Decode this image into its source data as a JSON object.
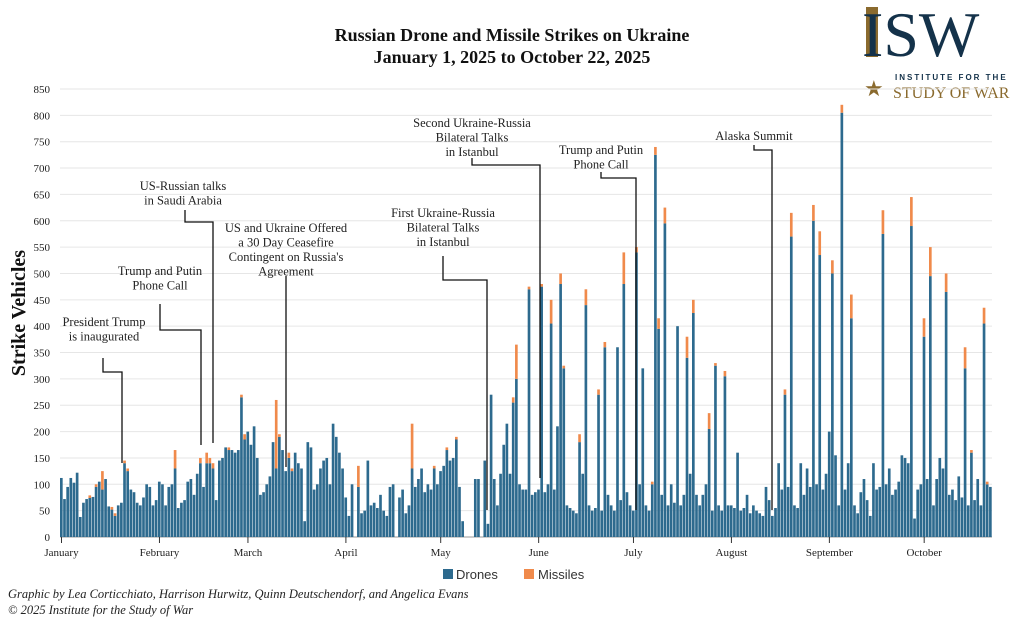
{
  "chart_data": {
    "type": "bar",
    "stacked": true,
    "title": "Russian Drone and Missile Strikes on Ukraine",
    "subtitle": "January 1, 2025 to October 22, 2025",
    "ylabel": "Strike Vehicles",
    "xlabel": "",
    "x_range": [
      "2025-01-01",
      "2025-10-22"
    ],
    "ylim": [
      0,
      850
    ],
    "yticks": [
      0,
      50,
      100,
      150,
      200,
      250,
      300,
      350,
      400,
      450,
      500,
      550,
      600,
      650,
      700,
      750,
      800,
      850
    ],
    "xticks": [
      {
        "label": "January",
        "day": 0
      },
      {
        "label": "February",
        "day": 31
      },
      {
        "label": "March",
        "day": 59
      },
      {
        "label": "April",
        "day": 90
      },
      {
        "label": "May",
        "day": 120
      },
      {
        "label": "June",
        "day": 151
      },
      {
        "label": "July",
        "day": 181
      },
      {
        "label": "August",
        "day": 212
      },
      {
        "label": "September",
        "day": 243
      },
      {
        "label": "October",
        "day": 273
      }
    ],
    "grid": true,
    "legend": "bottom",
    "colors": {
      "Drones": "#2d6a8e",
      "Missiles": "#f08a4b"
    },
    "series": [
      {
        "name": "Drones",
        "values": [
          112,
          72,
          95,
          112,
          103,
          122,
          38,
          65,
          72,
          74,
          76,
          95,
          105,
          90,
          110,
          58,
          52,
          40,
          60,
          65,
          140,
          125,
          90,
          85,
          65,
          60,
          75,
          100,
          95,
          60,
          70,
          105,
          100,
          60,
          95,
          100,
          130,
          55,
          65,
          70,
          105,
          110,
          80,
          120,
          140,
          95,
          140,
          140,
          130,
          70,
          145,
          150,
          170,
          165,
          165,
          160,
          165,
          265,
          185,
          200,
          175,
          210,
          150,
          80,
          85,
          100,
          115,
          180,
          130,
          190,
          165,
          125,
          150,
          125,
          160,
          140,
          130,
          30,
          180,
          170,
          90,
          100,
          130,
          145,
          150,
          100,
          215,
          190,
          160,
          130,
          75,
          40,
          100,
          0,
          95,
          45,
          50,
          145,
          60,
          65,
          55,
          80,
          50,
          40,
          95,
          100,
          0,
          75,
          90,
          45,
          60,
          130,
          95,
          110,
          130,
          85,
          100,
          90,
          130,
          100,
          125,
          135,
          165,
          145,
          150,
          185,
          95,
          30,
          0,
          0,
          0,
          110,
          110,
          0,
          145,
          25,
          270,
          110,
          60,
          120,
          175,
          215,
          120,
          255,
          300,
          100,
          90,
          90,
          470,
          80,
          85,
          90,
          475,
          85,
          100,
          405,
          90,
          210,
          480,
          320,
          60,
          55,
          50,
          45,
          180,
          120,
          440,
          60,
          50,
          55,
          270,
          50,
          360,
          80,
          60,
          50,
          360,
          70,
          480,
          85,
          60,
          50,
          540,
          100,
          320,
          60,
          50,
          100,
          725,
          395,
          80,
          595,
          60,
          100,
          65,
          400,
          60,
          80,
          340,
          120,
          425,
          80,
          60,
          80,
          100,
          205,
          50,
          325,
          60,
          50,
          305,
          60,
          60,
          55,
          160,
          50,
          55,
          80,
          45,
          60,
          50,
          45,
          40,
          95,
          70,
          40,
          55,
          140,
          90,
          270,
          95,
          570,
          60,
          55,
          140,
          80,
          130,
          95,
          600,
          100,
          535,
          90,
          120,
          200,
          500,
          155,
          60,
          805,
          90,
          140,
          415,
          60,
          45,
          85,
          110,
          70,
          40,
          140,
          90,
          95,
          575,
          100,
          130,
          80,
          90,
          105,
          155,
          150,
          140,
          590,
          35,
          90,
          100,
          380,
          110,
          495,
          60,
          110,
          150,
          130,
          465,
          80,
          90,
          70,
          115,
          75,
          320,
          60,
          160,
          70,
          110,
          60,
          405,
          100,
          95
        ]
      },
      {
        "name": "Missiles",
        "values": [
          0,
          0,
          0,
          0,
          0,
          0,
          0,
          0,
          0,
          5,
          0,
          5,
          0,
          35,
          0,
          0,
          5,
          5,
          0,
          0,
          5,
          5,
          0,
          0,
          0,
          0,
          0,
          0,
          0,
          0,
          0,
          0,
          0,
          0,
          0,
          0,
          35,
          0,
          0,
          0,
          0,
          0,
          0,
          0,
          10,
          0,
          20,
          10,
          10,
          0,
          0,
          0,
          0,
          5,
          0,
          0,
          0,
          5,
          10,
          0,
          0,
          0,
          0,
          0,
          0,
          0,
          0,
          0,
          130,
          5,
          0,
          0,
          10,
          5,
          0,
          0,
          0,
          0,
          0,
          0,
          0,
          0,
          0,
          0,
          0,
          0,
          0,
          0,
          0,
          0,
          0,
          0,
          0,
          0,
          40,
          0,
          0,
          0,
          0,
          0,
          0,
          0,
          0,
          0,
          0,
          0,
          0,
          0,
          0,
          0,
          0,
          85,
          0,
          0,
          0,
          0,
          0,
          0,
          5,
          0,
          0,
          0,
          5,
          0,
          0,
          5,
          0,
          0,
          0,
          0,
          0,
          0,
          0,
          0,
          0,
          0,
          0,
          0,
          0,
          0,
          0,
          0,
          0,
          10,
          65,
          0,
          0,
          0,
          5,
          0,
          0,
          0,
          5,
          0,
          0,
          45,
          0,
          0,
          20,
          5,
          0,
          0,
          0,
          0,
          15,
          0,
          30,
          0,
          0,
          0,
          10,
          0,
          10,
          0,
          0,
          0,
          0,
          0,
          60,
          0,
          0,
          0,
          10,
          0,
          0,
          0,
          0,
          5,
          15,
          20,
          0,
          30,
          0,
          0,
          0,
          0,
          0,
          0,
          40,
          0,
          25,
          0,
          0,
          0,
          0,
          30,
          0,
          5,
          0,
          0,
          10,
          0,
          0,
          0,
          0,
          0,
          0,
          0,
          0,
          0,
          0,
          0,
          0,
          0,
          0,
          0,
          0,
          0,
          0,
          10,
          0,
          45,
          0,
          0,
          0,
          0,
          0,
          0,
          30,
          0,
          45,
          0,
          0,
          0,
          25,
          0,
          0,
          15,
          0,
          0,
          45,
          0,
          0,
          0,
          0,
          0,
          0,
          0,
          0,
          0,
          45,
          0,
          0,
          0,
          0,
          0,
          0,
          0,
          0,
          55,
          0,
          0,
          0,
          35,
          0,
          55,
          0,
          0,
          0,
          0,
          35,
          0,
          0,
          0,
          0,
          0,
          40,
          0,
          5,
          0,
          0,
          0,
          30,
          5,
          0
        ]
      }
    ],
    "annotations": [
      {
        "lines": [
          "President Trump",
          "is inaugurated"
        ]
      },
      {
        "lines": [
          "Trump and Putin",
          "Phone Call"
        ]
      },
      {
        "lines": [
          "US-Russian talks",
          "in Saudi Arabia"
        ]
      },
      {
        "lines": [
          "US and Ukraine Offered",
          "a 30 Day Ceasefire",
          "Contingent on Russia's",
          "Agreement"
        ]
      },
      {
        "lines": [
          "First Ukraine-Russia",
          "Bilateral Talks",
          "in Istanbul"
        ]
      },
      {
        "lines": [
          "Second Ukraine-Russia",
          "Bilateral Talks",
          "in Istanbul"
        ]
      },
      {
        "lines": [
          "Trump and Putin",
          "Phone Call"
        ]
      },
      {
        "lines": [
          "Alaska Summit"
        ]
      }
    ]
  },
  "logo": {
    "letters": "ISW",
    "line1": "INSTITUTE FOR THE",
    "line2": "STUDY OF WAR"
  },
  "credits": {
    "authors": "Graphic by Lea Corticchiato, Harrison Hurwitz, Quinn Deutschendorf, and Angelica Evans",
    "copyright": "© 2025 Institute for the Study of War"
  }
}
